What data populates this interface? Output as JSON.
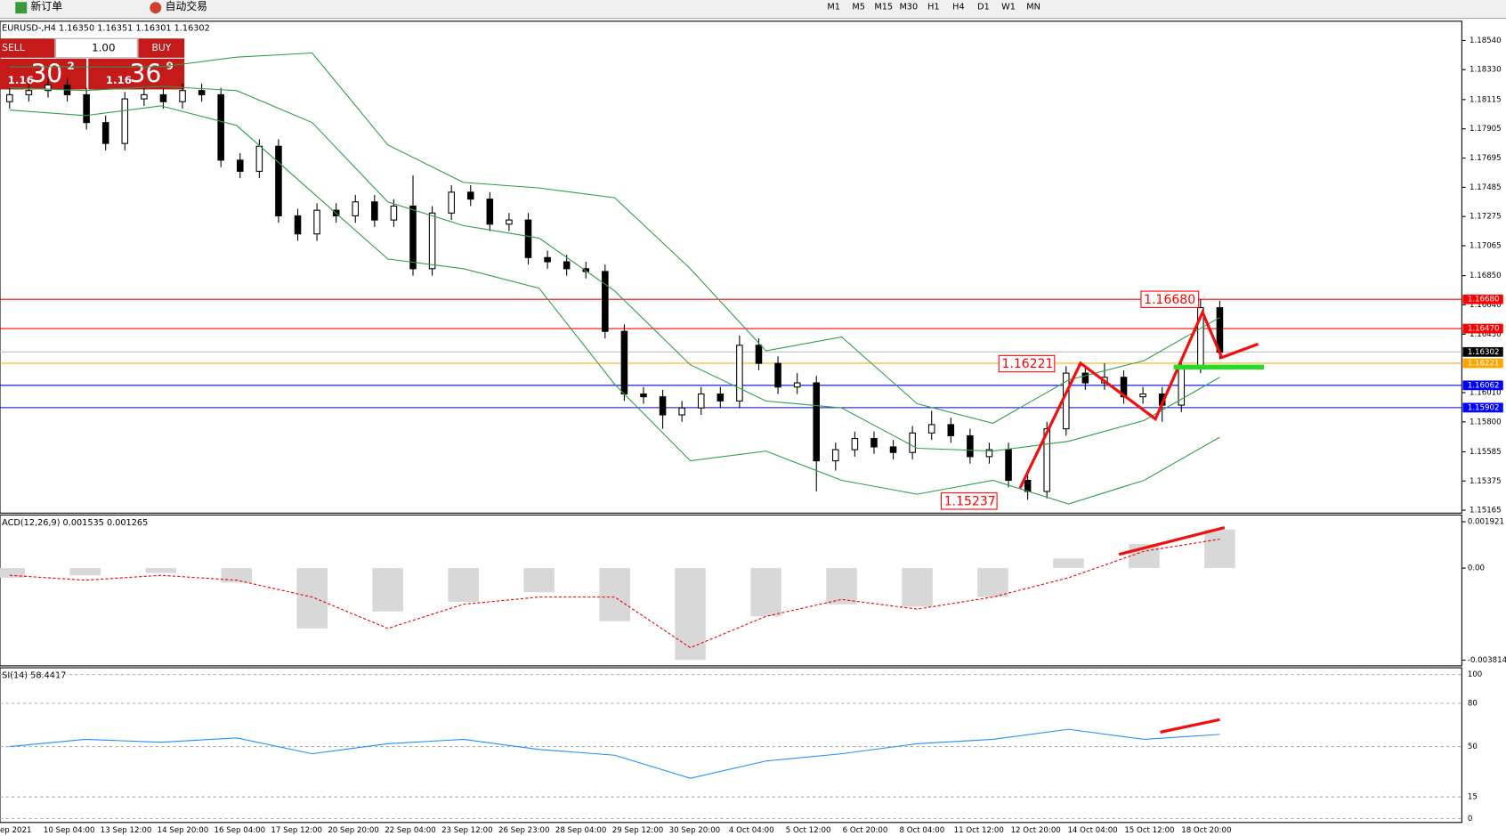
{
  "toolbar": {
    "new_order": "新订单",
    "auto_trading": "自动交易",
    "timeframes": [
      "M1",
      "M5",
      "M15",
      "M30",
      "H1",
      "H4",
      "D1",
      "W1",
      "MN"
    ]
  },
  "chart_header": "EURUSD-,H4 1.16350 1.16351 1.16301 1.16302",
  "one_click": {
    "sell": "SELL",
    "buy": "BUY",
    "lots": "1.00",
    "bid_big": "1.16",
    "bid_pips": "30",
    "bid_frac": "2",
    "ask_big": "1.16",
    "ask_pips": "36",
    "ask_frac": "9"
  },
  "price_chart": {
    "ylim": [
      1.15165,
      1.1854
    ],
    "yticks": [
      {
        "value": 1.1854,
        "label": "1.18540"
      },
      {
        "value": 1.1833,
        "label": "1.18330"
      },
      1.18115,
      1.17905,
      1.17695,
      1.17485,
      1.17275,
      1.17065,
      {
        "value": 1.1685,
        "label": "1.16850"
      },
      {
        "value": 1.1664,
        "label": "1.16640"
      },
      {
        "value": 1.1643,
        "label": "1.16430"
      },
      {
        "value": 1.1601,
        "label": "1.16010"
      },
      {
        "value": 1.158,
        "label": "1.15800"
      },
      1.15585,
      1.15375,
      1.15165
    ],
    "levels": [
      {
        "value": 1.1668,
        "label": "1.16680",
        "color": "#ff0000"
      },
      {
        "value": 1.1647,
        "label": "1.16470",
        "color": "#ff0000"
      },
      {
        "value": 1.16302,
        "label": "1.16302",
        "color": "#c0c0c0"
      },
      {
        "value": 1.16221,
        "label": "1.16221",
        "color": "#ffa500"
      },
      {
        "value": 1.16062,
        "label": "1.16062",
        "color": "#0000ff"
      },
      {
        "value": 1.15902,
        "label": "1.15902",
        "color": "#0000ff"
      }
    ],
    "annotations": [
      "1.16680",
      "1.16221",
      "1.15237"
    ],
    "candles": [
      [
        1.181,
        1.182,
        1.1805,
        1.1815
      ],
      [
        1.1815,
        1.1823,
        1.181,
        1.1818
      ],
      [
        1.1818,
        1.1827,
        1.1813,
        1.1822
      ],
      [
        1.1822,
        1.1827,
        1.181,
        1.1815
      ],
      [
        1.1815,
        1.182,
        1.179,
        1.1795
      ],
      [
        1.1795,
        1.18,
        1.1775,
        1.178
      ],
      [
        1.178,
        1.1817,
        1.1775,
        1.1812
      ],
      [
        1.1812,
        1.182,
        1.1807,
        1.1815
      ],
      [
        1.1815,
        1.182,
        1.1805,
        1.181
      ],
      [
        1.181,
        1.1823,
        1.1805,
        1.1818
      ],
      [
        1.1818,
        1.1823,
        1.181,
        1.1815
      ],
      [
        1.1815,
        1.182,
        1.1763,
        1.1768
      ],
      [
        1.1768,
        1.1773,
        1.1755,
        1.176
      ],
      [
        1.176,
        1.1783,
        1.1755,
        1.1778
      ],
      [
        1.1778,
        1.1783,
        1.1723,
        1.1728
      ],
      [
        1.1728,
        1.1733,
        1.171,
        1.1715
      ],
      [
        1.1715,
        1.1737,
        1.171,
        1.1732
      ],
      [
        1.1732,
        1.1737,
        1.1723,
        1.1728
      ],
      [
        1.1728,
        1.1743,
        1.1723,
        1.1738
      ],
      [
        1.1738,
        1.1743,
        1.172,
        1.1725
      ],
      [
        1.1725,
        1.174,
        1.172,
        1.1735
      ],
      [
        1.1735,
        1.1757,
        1.1685,
        1.169
      ],
      [
        1.169,
        1.1735,
        1.1685,
        1.173
      ],
      [
        1.173,
        1.175,
        1.1725,
        1.1745
      ],
      [
        1.1745,
        1.175,
        1.1735,
        1.174
      ],
      [
        1.174,
        1.1745,
        1.1717,
        1.1722
      ],
      [
        1.1722,
        1.173,
        1.1717,
        1.1725
      ],
      [
        1.1725,
        1.173,
        1.1693,
        1.1698
      ],
      [
        1.1698,
        1.1703,
        1.169,
        1.1695
      ],
      [
        1.1695,
        1.17,
        1.1685,
        1.169
      ],
      [
        1.169,
        1.1695,
        1.1683,
        1.1688
      ],
      [
        1.1688,
        1.1693,
        1.164,
        1.1645
      ],
      [
        1.1645,
        1.165,
        1.1595,
        1.16
      ],
      [
        1.16,
        1.1605,
        1.1593,
        1.1598
      ],
      [
        1.1598,
        1.1603,
        1.1575,
        1.1585
      ],
      [
        1.1585,
        1.1595,
        1.158,
        1.159
      ],
      [
        1.159,
        1.1605,
        1.1585,
        1.16
      ],
      [
        1.16,
        1.1605,
        1.159,
        1.1595
      ],
      [
        1.1595,
        1.1642,
        1.159,
        1.1635
      ],
      [
        1.1635,
        1.164,
        1.1617,
        1.1622
      ],
      [
        1.1622,
        1.1627,
        1.16,
        1.1605
      ],
      [
        1.1605,
        1.1615,
        1.16,
        1.1608
      ],
      [
        1.1608,
        1.1613,
        1.153,
        1.1552
      ],
      [
        1.1552,
        1.1565,
        1.1545,
        1.156
      ],
      [
        1.156,
        1.1573,
        1.1555,
        1.1568
      ],
      [
        1.1568,
        1.1573,
        1.1557,
        1.1562
      ],
      [
        1.1562,
        1.1567,
        1.1553,
        1.1558
      ],
      [
        1.1558,
        1.1577,
        1.1553,
        1.1572
      ],
      [
        1.1572,
        1.1588,
        1.1567,
        1.1578
      ],
      [
        1.1578,
        1.1583,
        1.1565,
        1.157
      ],
      [
        1.157,
        1.1575,
        1.155,
        1.1555
      ],
      [
        1.1555,
        1.1565,
        1.155,
        1.156
      ],
      [
        1.156,
        1.1565,
        1.1533,
        1.1538
      ],
      [
        1.1538,
        1.1543,
        1.1524,
        1.153
      ],
      [
        1.153,
        1.158,
        1.1525,
        1.1575
      ],
      [
        1.1575,
        1.162,
        1.157,
        1.1615
      ],
      [
        1.1615,
        1.162,
        1.1603,
        1.1608
      ],
      [
        1.1608,
        1.1622,
        1.1603,
        1.1612
      ],
      [
        1.1612,
        1.1617,
        1.1593,
        1.1598
      ],
      [
        1.1598,
        1.1605,
        1.1593,
        1.16
      ],
      [
        1.16,
        1.1605,
        1.158,
        1.1592
      ],
      [
        1.1592,
        1.1625,
        1.1587,
        1.162
      ],
      [
        1.162,
        1.1668,
        1.1615,
        1.1662
      ],
      [
        1.1662,
        1.1667,
        1.1625,
        1.163
      ]
    ],
    "bands": {
      "color": "#2e9e4a",
      "upper": [
        1.1835,
        1.1835,
        1.1835,
        1.1842,
        1.1845,
        1.1779,
        1.1752,
        1.1748,
        1.1741,
        1.169,
        1.1631,
        1.1641,
        1.1593,
        1.1579,
        1.161,
        1.1624,
        1.1655
      ],
      "middle": [
        1.182,
        1.1818,
        1.1821,
        1.1818,
        1.1795,
        1.1738,
        1.1721,
        1.1712,
        1.1674,
        1.1621,
        1.1595,
        1.159,
        1.1561,
        1.1559,
        1.1566,
        1.1581,
        1.1612
      ],
      "lower": [
        1.1804,
        1.18,
        1.1807,
        1.1793,
        1.1745,
        1.1697,
        1.169,
        1.1676,
        1.1607,
        1.1552,
        1.1559,
        1.1538,
        1.1528,
        1.1538,
        1.1521,
        1.1538,
        1.1569
      ]
    }
  },
  "macd": {
    "label": "ACD(12,26,9) 0.001535 0.001265",
    "ylim": [
      -0.003814,
      0.001921
    ],
    "yticks": [
      0.001921,
      {
        "value": 0,
        "label": "0.00"
      },
      -0.003814
    ],
    "histogram": [
      -0.0004,
      -0.0003,
      -0.0002,
      -0.0006,
      -0.0025,
      -0.0018,
      -0.0014,
      -0.001,
      -0.0022,
      -0.0038,
      -0.002,
      -0.0015,
      -0.0016,
      -0.0012,
      0.0004,
      0.001,
      0.0016
    ],
    "signal": [
      -0.0003,
      -0.0005,
      -0.0003,
      -0.0005,
      -0.0012,
      -0.0025,
      -0.0015,
      -0.0012,
      -0.0012,
      -0.0033,
      -0.002,
      -0.0013,
      -0.0017,
      -0.0012,
      -0.0004,
      0.0007,
      0.0012
    ]
  },
  "rsi": {
    "label": "SI(14) 58.4417",
    "ylim": [
      0,
      100
    ],
    "yticks": [
      100,
      80,
      50,
      15,
      0
    ],
    "values": [
      50,
      55,
      53,
      56,
      45,
      52,
      55,
      48,
      44,
      28,
      40,
      45,
      52,
      55,
      62,
      55,
      58.4417
    ]
  },
  "time_labels": [
    "ep 2021",
    "10 Sep 04:00",
    "13 Sep 12:00",
    "14 Sep 20:00",
    "16 Sep 04:00",
    "17 Sep 12:00",
    "20 Sep 20:00",
    "22 Sep 04:00",
    "23 Sep 12:00",
    "26 Sep 23:00",
    "28 Sep 04:00",
    "29 Sep 12:00",
    "30 Sep 20:00",
    "4 Oct 04:00",
    "5 Oct 12:00",
    "6 Oct 20:00",
    "8 Oct 04:00",
    "11 Oct 12:00",
    "12 Oct 20:00",
    "14 Oct 04:00",
    "15 Oct 12:00",
    "18 Oct 20:00"
  ]
}
